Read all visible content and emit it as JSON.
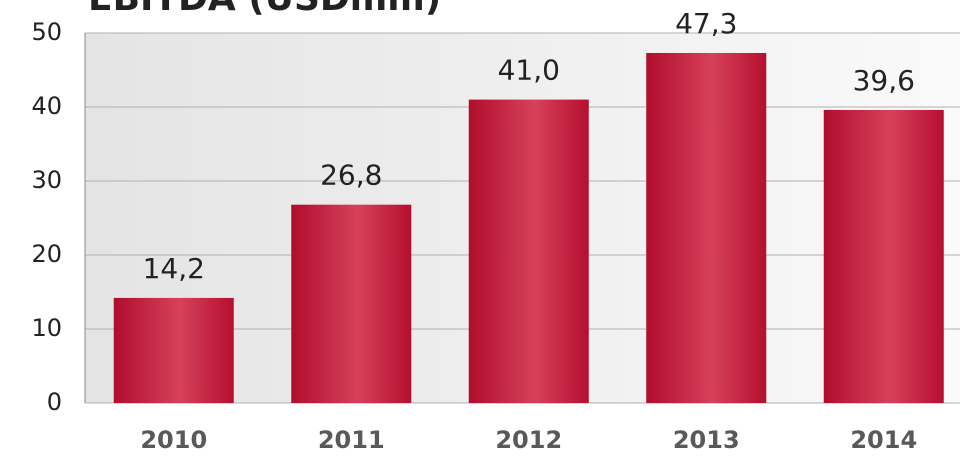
{
  "chart_data": {
    "type": "bar",
    "title": "EBITDA (USDmm)",
    "categories": [
      "2010",
      "2011",
      "2012",
      "2013",
      "2014"
    ],
    "values": [
      14.2,
      26.8,
      41.0,
      47.3,
      39.6
    ],
    "value_labels": [
      "14,2",
      "26,8",
      "41,0",
      "47,3",
      "39,6"
    ],
    "color": "#c41a3b",
    "ylim": [
      0,
      50
    ],
    "yticks": [
      0,
      10,
      20,
      30,
      40,
      50
    ],
    "grid": true
  }
}
